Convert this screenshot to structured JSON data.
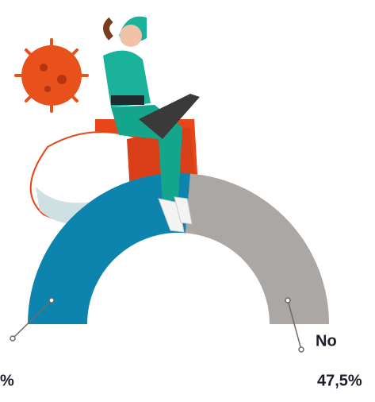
{
  "chart_data": {
    "type": "pie",
    "shape": "half-donut",
    "categories": [
      null,
      "No"
    ],
    "values": [
      52.5,
      47.5
    ],
    "value_labels": [
      "%",
      "47,5%"
    ],
    "colors": [
      "#0d84ae",
      "#aaa7a5"
    ]
  }
}
